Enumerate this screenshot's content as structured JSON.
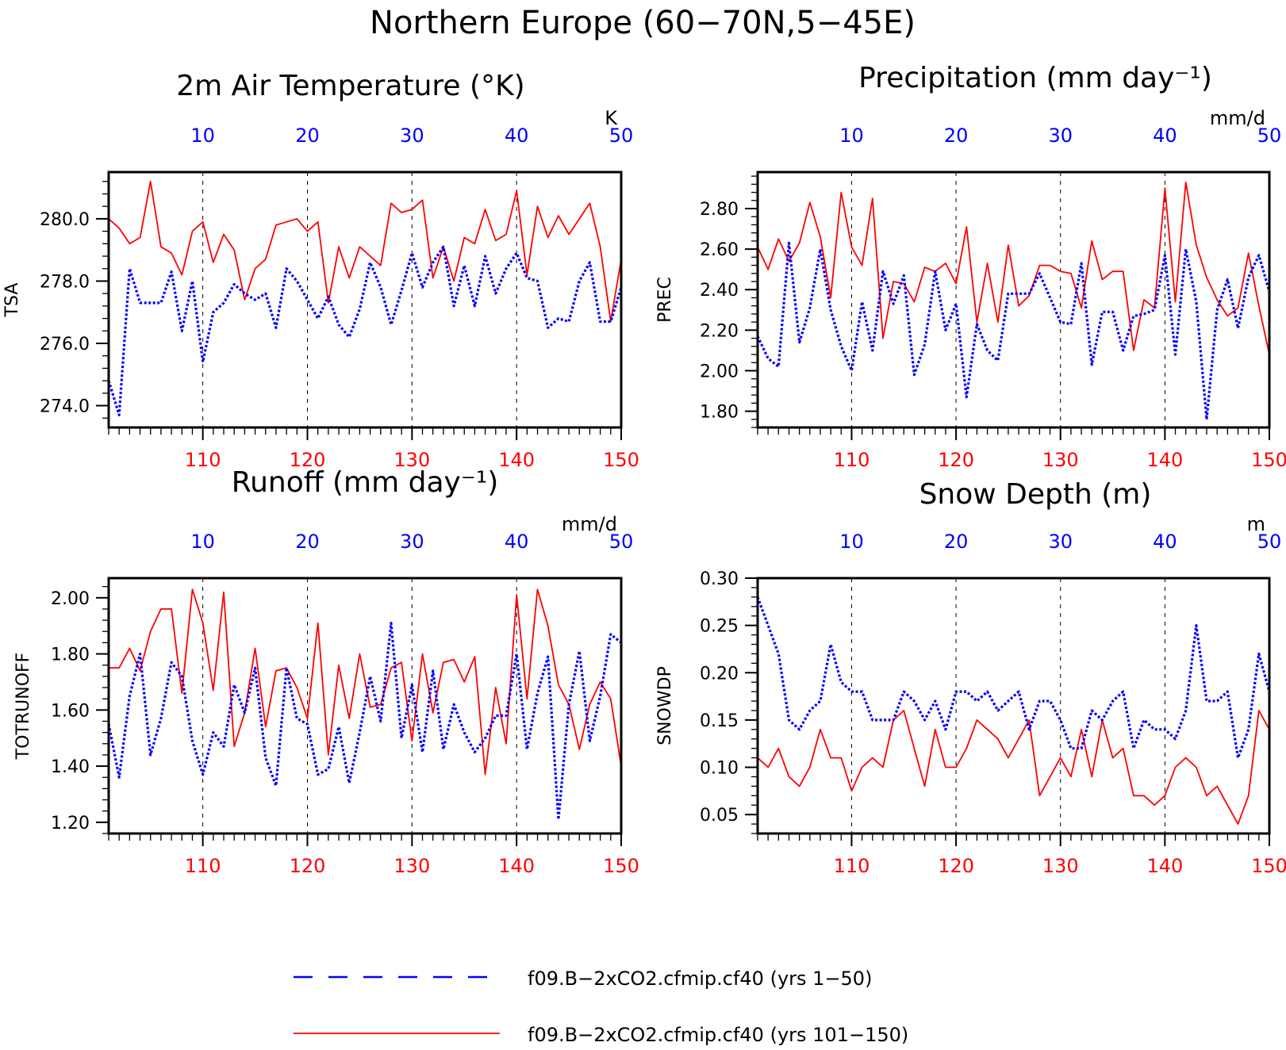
{
  "figure": {
    "title": "Northern Europe (60−70N,5−45E)"
  },
  "colors": {
    "blue": "#0000ff",
    "red": "#ff0000",
    "axis": "#000000"
  },
  "legend": {
    "position": "bottom",
    "entries": [
      {
        "label": "f09.B−2xCO2.cfmip.cf40 (yrs 1−50)",
        "color": "#0000ff",
        "style": "dashed"
      },
      {
        "label": "f09.B−2xCO2.cfmip.cf40 (yrs 101−150)",
        "color": "#ff0000",
        "style": "solid"
      }
    ]
  },
  "chart_data": [
    {
      "type": "line",
      "title": "2m Air Temperature (°K)",
      "ylabel": "TSA",
      "units": "K",
      "ylim": [
        273.3,
        281.5
      ],
      "yticks": [
        274,
        276,
        278,
        280
      ],
      "ytick_labels": [
        "274.0",
        "276.0",
        "278.0",
        "280.0"
      ],
      "yminor": 0.4,
      "top_xlim": [
        1,
        50
      ],
      "top_xticks": [
        10,
        20,
        30,
        40,
        50
      ],
      "bottom_xlim": [
        101,
        150
      ],
      "bottom_xticks": [
        110,
        120,
        130,
        140,
        150
      ],
      "grid": "dashed vertical",
      "series": [
        {
          "values": [
            274.8,
            273.7,
            278.4,
            277.3,
            277.3,
            277.3,
            278.3,
            276.4,
            278.0,
            275.4,
            277.0,
            277.3,
            277.9,
            277.6,
            277.4,
            277.6,
            276.5,
            278.4,
            278.0,
            277.4,
            276.8,
            277.5,
            276.6,
            276.2,
            277.1,
            278.6,
            277.8,
            276.6,
            277.7,
            278.9,
            277.8,
            278.6,
            279.1,
            277.2,
            278.5,
            277.2,
            278.8,
            277.6,
            278.4,
            278.9,
            278.1,
            278.0,
            276.5,
            276.8,
            276.7,
            278.0,
            278.6,
            276.7,
            276.7,
            277.8
          ]
        },
        {
          "values": [
            280.0,
            279.7,
            279.2,
            279.4,
            281.2,
            279.1,
            278.9,
            278.2,
            279.6,
            279.9,
            278.6,
            279.5,
            279.0,
            277.4,
            278.4,
            278.7,
            279.8,
            279.9,
            280.0,
            279.6,
            279.9,
            277.3,
            279.1,
            278.1,
            279.1,
            278.8,
            278.5,
            280.5,
            280.2,
            280.3,
            280.6,
            278.1,
            279.1,
            278.0,
            279.4,
            279.2,
            280.3,
            279.3,
            279.5,
            280.9,
            278.2,
            280.4,
            279.4,
            280.1,
            279.5,
            280.0,
            280.5,
            279.1,
            276.7,
            278.7
          ]
        }
      ]
    },
    {
      "type": "line",
      "title": "Precipitation (mm day⁻¹)",
      "ylabel": "PREC",
      "units": "mm/d",
      "ylim": [
        1.72,
        2.98
      ],
      "yticks": [
        1.8,
        2.0,
        2.2,
        2.4,
        2.6,
        2.8
      ],
      "ytick_labels": [
        "1.80",
        "2.00",
        "2.20",
        "2.40",
        "2.60",
        "2.80"
      ],
      "yminor": 0.04,
      "top_xlim": [
        1,
        50
      ],
      "top_xticks": [
        10,
        20,
        30,
        40,
        50
      ],
      "bottom_xlim": [
        101,
        150
      ],
      "bottom_xticks": [
        110,
        120,
        130,
        140,
        150
      ],
      "grid": "dashed vertical",
      "series": [
        {
          "values": [
            2.17,
            2.06,
            2.02,
            2.63,
            2.14,
            2.31,
            2.6,
            2.3,
            2.12,
            2.0,
            2.34,
            2.1,
            2.49,
            2.33,
            2.47,
            1.98,
            2.13,
            2.49,
            2.2,
            2.33,
            1.87,
            2.23,
            2.1,
            2.05,
            2.38,
            2.38,
            2.38,
            2.48,
            2.36,
            2.24,
            2.23,
            2.53,
            2.03,
            2.29,
            2.29,
            2.1,
            2.27,
            2.28,
            2.3,
            2.57,
            2.08,
            2.6,
            2.34,
            1.76,
            2.3,
            2.45,
            2.21,
            2.46,
            2.57,
            2.39
          ]
        },
        {
          "values": [
            2.61,
            2.5,
            2.65,
            2.54,
            2.63,
            2.83,
            2.66,
            2.36,
            2.88,
            2.61,
            2.52,
            2.85,
            2.16,
            2.44,
            2.43,
            2.34,
            2.51,
            2.49,
            2.53,
            2.43,
            2.71,
            2.24,
            2.53,
            2.24,
            2.62,
            2.32,
            2.37,
            2.52,
            2.52,
            2.49,
            2.48,
            2.31,
            2.64,
            2.45,
            2.49,
            2.49,
            2.1,
            2.35,
            2.31,
            2.9,
            2.34,
            2.93,
            2.62,
            2.46,
            2.35,
            2.27,
            2.31,
            2.58,
            2.32,
            2.08
          ]
        }
      ]
    },
    {
      "type": "line",
      "title": "Runoff (mm day⁻¹)",
      "ylabel": "TOTRUNOFF",
      "units": "mm/d",
      "ylim": [
        1.16,
        2.07
      ],
      "yticks": [
        1.2,
        1.4,
        1.6,
        1.8,
        2.0
      ],
      "ytick_labels": [
        "1.20",
        "1.40",
        "1.60",
        "1.80",
        "2.00"
      ],
      "yminor": 0.04,
      "top_xlim": [
        1,
        50
      ],
      "top_xticks": [
        10,
        20,
        30,
        40,
        50
      ],
      "bottom_xlim": [
        101,
        150
      ],
      "bottom_xticks": [
        110,
        120,
        130,
        140,
        150
      ],
      "grid": "dashed vertical",
      "series": [
        {
          "values": [
            1.55,
            1.36,
            1.65,
            1.8,
            1.44,
            1.57,
            1.77,
            1.72,
            1.49,
            1.37,
            1.52,
            1.47,
            1.69,
            1.59,
            1.75,
            1.43,
            1.33,
            1.75,
            1.57,
            1.55,
            1.37,
            1.39,
            1.54,
            1.34,
            1.52,
            1.72,
            1.56,
            1.91,
            1.5,
            1.69,
            1.45,
            1.74,
            1.46,
            1.62,
            1.52,
            1.45,
            1.5,
            1.58,
            1.58,
            1.8,
            1.46,
            1.66,
            1.79,
            1.21,
            1.62,
            1.81,
            1.49,
            1.65,
            1.87,
            1.84
          ]
        },
        {
          "values": [
            1.75,
            1.75,
            1.82,
            1.74,
            1.88,
            1.96,
            1.96,
            1.66,
            2.03,
            1.91,
            1.67,
            2.02,
            1.47,
            1.59,
            1.82,
            1.54,
            1.74,
            1.75,
            1.68,
            1.57,
            1.91,
            1.44,
            1.76,
            1.57,
            1.8,
            1.61,
            1.62,
            1.75,
            1.77,
            1.49,
            1.8,
            1.59,
            1.77,
            1.78,
            1.7,
            1.79,
            1.37,
            1.68,
            1.48,
            2.01,
            1.64,
            2.03,
            1.9,
            1.69,
            1.62,
            1.46,
            1.62,
            1.7,
            1.64,
            1.4
          ]
        }
      ]
    },
    {
      "type": "line",
      "title": "Snow Depth (m)",
      "ylabel": "SNOWDP",
      "units": "m",
      "ylim": [
        0.03,
        0.3
      ],
      "yticks": [
        0.05,
        0.1,
        0.15,
        0.2,
        0.25,
        0.3
      ],
      "ytick_labels": [
        "0.05",
        "0.10",
        "0.15",
        "0.20",
        "0.25",
        "0.30"
      ],
      "yminor": 0.01,
      "top_xlim": [
        1,
        50
      ],
      "top_xticks": [
        10,
        20,
        30,
        40,
        50
      ],
      "bottom_xlim": [
        101,
        150
      ],
      "bottom_xticks": [
        110,
        120,
        130,
        140,
        150
      ],
      "grid": "dashed vertical",
      "series": [
        {
          "values": [
            0.28,
            0.25,
            0.22,
            0.15,
            0.14,
            0.16,
            0.17,
            0.23,
            0.19,
            0.18,
            0.18,
            0.15,
            0.15,
            0.15,
            0.18,
            0.17,
            0.15,
            0.17,
            0.14,
            0.18,
            0.18,
            0.17,
            0.18,
            0.16,
            0.17,
            0.18,
            0.14,
            0.17,
            0.17,
            0.15,
            0.12,
            0.12,
            0.16,
            0.15,
            0.17,
            0.18,
            0.12,
            0.15,
            0.14,
            0.14,
            0.13,
            0.16,
            0.25,
            0.17,
            0.17,
            0.18,
            0.11,
            0.14,
            0.22,
            0.18
          ]
        },
        {
          "values": [
            0.11,
            0.1,
            0.12,
            0.09,
            0.08,
            0.1,
            0.14,
            0.11,
            0.11,
            0.075,
            0.1,
            0.11,
            0.1,
            0.15,
            0.16,
            0.12,
            0.08,
            0.14,
            0.1,
            0.1,
            0.12,
            0.15,
            0.14,
            0.13,
            0.11,
            0.13,
            0.15,
            0.07,
            0.09,
            0.11,
            0.09,
            0.14,
            0.09,
            0.15,
            0.11,
            0.12,
            0.07,
            0.07,
            0.06,
            0.07,
            0.1,
            0.11,
            0.1,
            0.07,
            0.08,
            0.06,
            0.04,
            0.07,
            0.16,
            0.14
          ]
        }
      ]
    }
  ]
}
